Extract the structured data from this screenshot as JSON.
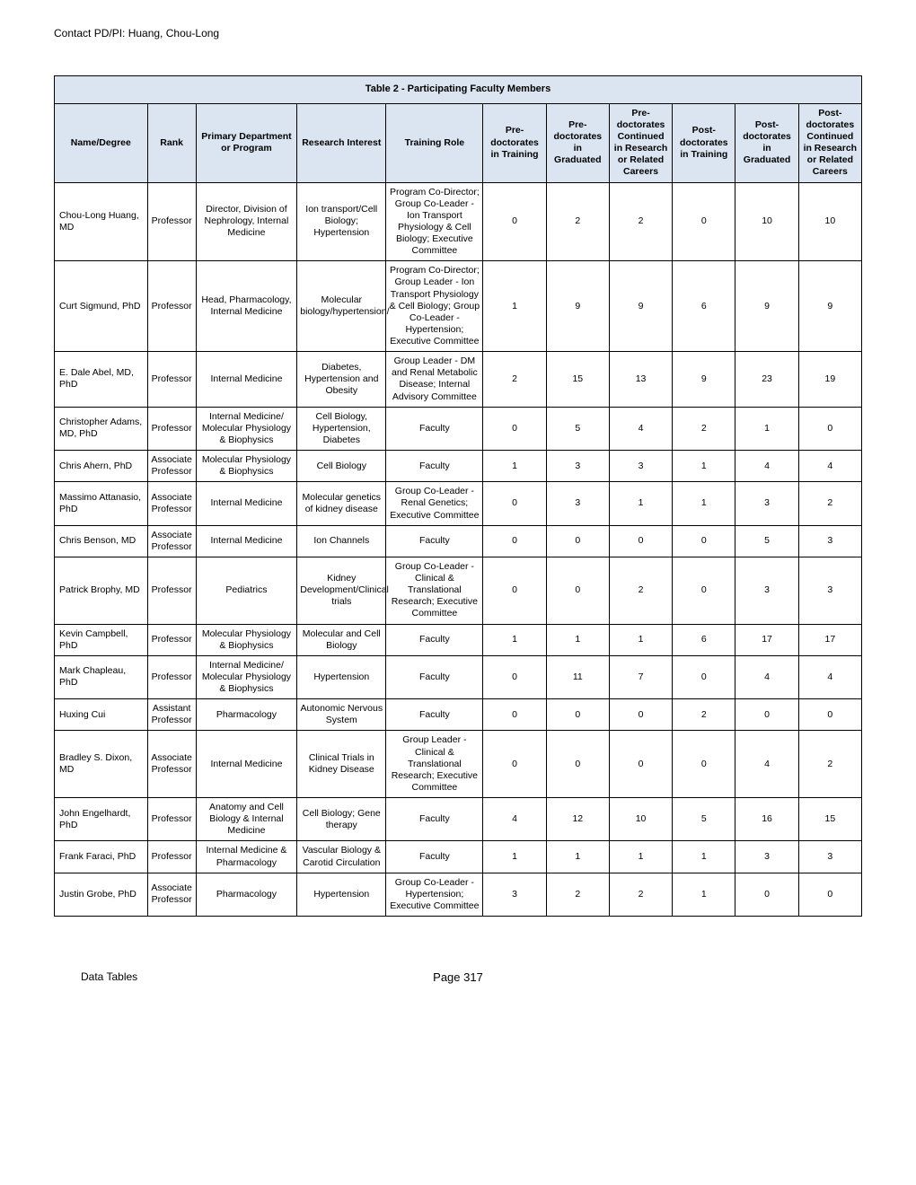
{
  "header": {
    "contact": "Contact PD/PI: Huang, Chou-Long"
  },
  "table": {
    "title": "Table 2 - Participating Faculty Members",
    "columns": [
      "Name/Degree",
      "Rank",
      "Primary Department or Program",
      "Research Interest",
      "Training Role",
      "Pre-doctorates in Training",
      "Pre-doctorates in Graduated",
      "Pre-doctorates Continued in Research or Related Careers",
      "Post-doctorates in Training",
      "Post-doctorates in Graduated",
      "Post-doctorates Continued in Research or Related Careers"
    ],
    "rows": [
      {
        "name": "Chou-Long Huang, MD",
        "rank": "Professor",
        "dept": "Director, Division of Nephrology, Internal Medicine",
        "research": "Ion transport/Cell Biology; Hypertension",
        "role": "Program Co-Director; Group Co-Leader - Ion Transport Physiology & Cell Biology; Executive Committee",
        "n1": "0",
        "n2": "2",
        "n3": "2",
        "n4": "0",
        "n5": "10",
        "n6": "10"
      },
      {
        "name": "Curt Sigmund, PhD",
        "rank": "Professor",
        "dept": "Head, Pharmacology, Internal Medicine",
        "research": "Molecular biology/hypertension/",
        "role": "Program Co-Director; Group Leader - Ion Transport Physiology & Cell Biology; Group Co-Leader - Hypertension; Executive Committee",
        "n1": "1",
        "n2": "9",
        "n3": "9",
        "n4": "6",
        "n5": "9",
        "n6": "9"
      },
      {
        "name": "E. Dale Abel, MD, PhD",
        "rank": "Professor",
        "dept": "Internal Medicine",
        "research": "Diabetes, Hypertension and Obesity",
        "role": "Group Leader - DM and Renal Metabolic Disease; Internal Advisory Committee",
        "n1": "2",
        "n2": "15",
        "n3": "13",
        "n4": "9",
        "n5": "23",
        "n6": "19"
      },
      {
        "name": "Christopher Adams, MD, PhD",
        "rank": "Professor",
        "dept": "Internal Medicine/ Molecular Physiology & Biophysics",
        "research": "Cell Biology, Hypertension, Diabetes",
        "role": "Faculty",
        "n1": "0",
        "n2": "5",
        "n3": "4",
        "n4": "2",
        "n5": "1",
        "n6": "0"
      },
      {
        "name": "Chris Ahern, PhD",
        "rank": "Associate Professor",
        "dept": "Molecular Physiology & Biophysics",
        "research": "Cell Biology",
        "role": "Faculty",
        "n1": "1",
        "n2": "3",
        "n3": "3",
        "n4": "1",
        "n5": "4",
        "n6": "4"
      },
      {
        "name": "Massimo Attanasio, PhD",
        "rank": "Associate Professor",
        "dept": "Internal Medicine",
        "research": "Molecular genetics of kidney disease",
        "role": "Group Co-Leader - Renal Genetics; Executive Committee",
        "n1": "0",
        "n2": "3",
        "n3": "1",
        "n4": "1",
        "n5": "3",
        "n6": "2"
      },
      {
        "name": "Chris Benson, MD",
        "rank": "Associate Professor",
        "dept": "Internal Medicine",
        "research": "Ion Channels",
        "role": "Faculty",
        "n1": "0",
        "n2": "0",
        "n3": "0",
        "n4": "0",
        "n5": "5",
        "n6": "3"
      },
      {
        "name": "Patrick Brophy, MD",
        "rank": "Professor",
        "dept": "Pediatrics",
        "research": "Kidney Development/Clinical trials",
        "role": "Group Co-Leader - Clinical & Translational Research; Executive Committee",
        "n1": "0",
        "n2": "0",
        "n3": "2",
        "n4": "0",
        "n5": "3",
        "n6": "3"
      },
      {
        "name": "Kevin Campbell, PhD",
        "rank": "Professor",
        "dept": "Molecular Physiology & Biophysics",
        "research": "Molecular and Cell Biology",
        "role": "Faculty",
        "n1": "1",
        "n2": "1",
        "n3": "1",
        "n4": "6",
        "n5": "17",
        "n6": "17"
      },
      {
        "name": "Mark Chapleau, PhD",
        "rank": "Professor",
        "dept": "Internal Medicine/ Molecular Physiology & Biophysics",
        "research": "Hypertension",
        "role": "Faculty",
        "n1": "0",
        "n2": "11",
        "n3": "7",
        "n4": "0",
        "n5": "4",
        "n6": "4"
      },
      {
        "name": "Huxing Cui",
        "rank": "Assistant Professor",
        "dept": "Pharmacology",
        "research": "Autonomic Nervous System",
        "role": "Faculty",
        "n1": "0",
        "n2": "0",
        "n3": "0",
        "n4": "2",
        "n5": "0",
        "n6": "0"
      },
      {
        "name": "Bradley S. Dixon, MD",
        "rank": "Associate Professor",
        "dept": "Internal Medicine",
        "research": "Clinical Trials in Kidney Disease",
        "role": "Group Leader - Clinical & Translational Research; Executive Committee",
        "n1": "0",
        "n2": "0",
        "n3": "0",
        "n4": "0",
        "n5": "4",
        "n6": "2"
      },
      {
        "name": "John Engelhardt, PhD",
        "rank": "Professor",
        "dept": "Anatomy and Cell Biology & Internal Medicine",
        "research": "Cell Biology; Gene therapy",
        "role": "Faculty",
        "n1": "4",
        "n2": "12",
        "n3": "10",
        "n4": "5",
        "n5": "16",
        "n6": "15"
      },
      {
        "name": "Frank Faraci, PhD",
        "rank": "Professor",
        "dept": "Internal Medicine & Pharmacology",
        "research": "Vascular Biology & Carotid Circulation",
        "role": "Faculty",
        "n1": "1",
        "n2": "1",
        "n3": "1",
        "n4": "1",
        "n5": "3",
        "n6": "3"
      },
      {
        "name": "Justin Grobe, PhD",
        "rank": "Associate Professor",
        "dept": "Pharmacology",
        "research": "Hypertension",
        "role": "Group Co-Leader - Hypertension; Executive Committee",
        "n1": "3",
        "n2": "2",
        "n3": "2",
        "n4": "1",
        "n5": "0",
        "n6": "0"
      }
    ]
  },
  "footer": {
    "left": "Data Tables",
    "center": "Page 317"
  }
}
